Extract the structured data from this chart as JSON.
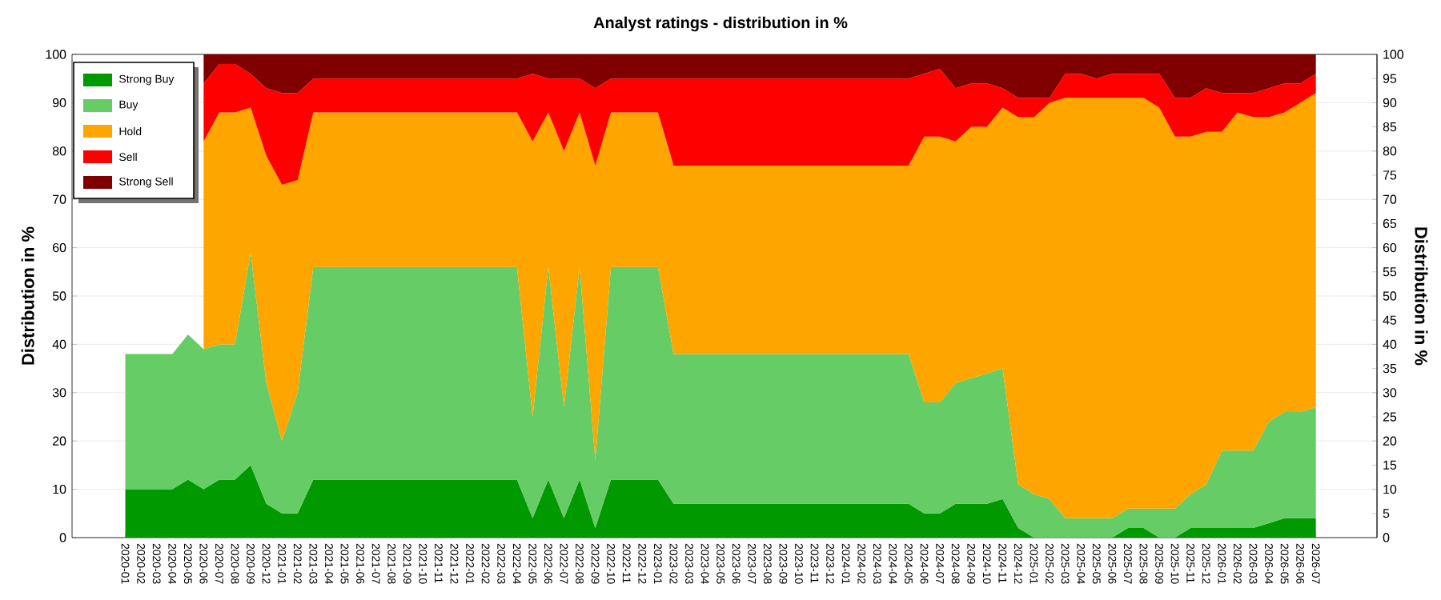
{
  "chart_data": {
    "type": "area",
    "title": "Analyst ratings - distribution in %",
    "ylabel": "Distribution in %",
    "y2label": "Distribution in %",
    "categories": [
      "2020-01",
      "2020-02",
      "2020-03",
      "2020-04",
      "2020-05",
      "2020-06",
      "2020-07",
      "2020-08",
      "2020-09",
      "2020-12",
      "2021-01",
      "2021-02",
      "2021-03",
      "2021-04",
      "2021-05",
      "2021-06",
      "2021-07",
      "2021-08",
      "2021-09",
      "2021-10",
      "2021-11",
      "2021-12",
      "2022-01",
      "2022-02",
      "2022-03",
      "2022-04",
      "2022-05",
      "2022-06",
      "2022-07",
      "2022-08",
      "2022-09",
      "2022-10",
      "2022-11",
      "2022-12",
      "2023-01",
      "2023-02",
      "2023-03",
      "2023-04",
      "2023-05",
      "2023-06",
      "2023-07",
      "2023-08",
      "2023-09",
      "2023-10",
      "2023-11",
      "2023-12",
      "2024-01",
      "2024-02",
      "2024-03",
      "2024-04",
      "2024-05",
      "2024-06",
      "2024-07",
      "2024-08",
      "2024-09",
      "2024-10",
      "2024-11",
      "2024-12",
      "2025-01",
      "2025-02",
      "2025-03",
      "2025-04",
      "2025-05",
      "2025-06",
      "2025-07",
      "2025-08",
      "2025-09",
      "2025-10",
      "2025-11",
      "2025-12",
      "2026-01",
      "2026-02",
      "2026-03",
      "2026-04",
      "2026-05",
      "2026-06",
      "2026-07"
    ],
    "stacked": true,
    "ylim": [
      0,
      100
    ],
    "yticks": [
      0,
      10,
      20,
      30,
      40,
      50,
      60,
      70,
      80,
      90,
      100
    ],
    "y2lim": [
      0,
      100
    ],
    "y2ticks": [
      0,
      5,
      10,
      15,
      20,
      25,
      30,
      35,
      40,
      45,
      50,
      55,
      60,
      65,
      70,
      75,
      80,
      85,
      90,
      95,
      100
    ],
    "grid": "y",
    "legend": "top left",
    "series": [
      {
        "name": "Strong Buy",
        "color": "#009900",
        "values": [
          10,
          10,
          10,
          10,
          12,
          10,
          12,
          12,
          15,
          7,
          5,
          5,
          12,
          12,
          12,
          12,
          12,
          12,
          12,
          12,
          12,
          12,
          12,
          12,
          12,
          12,
          4,
          12,
          4,
          12,
          2,
          12,
          12,
          12,
          12,
          7,
          7,
          7,
          7,
          7,
          7,
          7,
          7,
          7,
          7,
          7,
          7,
          7,
          7,
          7,
          7,
          5,
          5,
          7,
          7,
          7,
          8,
          2,
          0,
          0,
          0,
          0,
          0,
          0,
          2,
          2,
          0,
          0,
          2,
          2,
          2,
          2,
          2,
          3,
          4,
          4,
          4
        ]
      },
      {
        "name": "Buy",
        "color": "#66cc66",
        "values": [
          28,
          28,
          28,
          28,
          30,
          29,
          28,
          28,
          44,
          25,
          15,
          25,
          44,
          44,
          44,
          44,
          44,
          44,
          44,
          44,
          44,
          44,
          44,
          44,
          44,
          44,
          21,
          44,
          23,
          44,
          14,
          44,
          44,
          44,
          44,
          31,
          31,
          31,
          31,
          31,
          31,
          31,
          31,
          31,
          31,
          31,
          31,
          31,
          31,
          31,
          31,
          23,
          23,
          25,
          26,
          27,
          27,
          9,
          9,
          8,
          4,
          4,
          4,
          4,
          4,
          4,
          6,
          6,
          7,
          9,
          16,
          16,
          16,
          21,
          22,
          22,
          23
        ]
      },
      {
        "name": "Hold",
        "color": "#ffa500",
        "values": [
          null,
          null,
          null,
          null,
          null,
          43,
          48,
          48,
          30,
          47,
          53,
          44,
          32,
          32,
          32,
          32,
          32,
          32,
          32,
          32,
          32,
          32,
          32,
          32,
          32,
          32,
          57,
          32,
          53,
          32,
          61,
          32,
          32,
          32,
          32,
          39,
          39,
          39,
          39,
          39,
          39,
          39,
          39,
          39,
          39,
          39,
          39,
          39,
          39,
          39,
          39,
          55,
          55,
          50,
          52,
          51,
          54,
          76,
          78,
          82,
          87,
          87,
          87,
          87,
          85,
          85,
          83,
          77,
          74,
          73,
          66,
          70,
          69,
          63,
          62,
          64,
          65
        ]
      },
      {
        "name": "Sell",
        "color": "#ff0000",
        "values": [
          null,
          null,
          null,
          null,
          null,
          12,
          10,
          10,
          7,
          14,
          19,
          18,
          7,
          7,
          7,
          7,
          7,
          7,
          7,
          7,
          7,
          7,
          7,
          7,
          7,
          7,
          14,
          7,
          15,
          7,
          16,
          7,
          7,
          7,
          7,
          18,
          18,
          18,
          18,
          18,
          18,
          18,
          18,
          18,
          18,
          18,
          18,
          18,
          18,
          18,
          18,
          13,
          14,
          11,
          9,
          9,
          4,
          4,
          4,
          1,
          5,
          5,
          4,
          5,
          5,
          5,
          7,
          8,
          8,
          9,
          8,
          4,
          5,
          6,
          6,
          4,
          4
        ]
      },
      {
        "name": "Strong Sell",
        "color": "#800000",
        "values": [
          null,
          null,
          null,
          null,
          null,
          6,
          2,
          2,
          4,
          7,
          8,
          8,
          5,
          5,
          5,
          5,
          5,
          5,
          5,
          5,
          5,
          5,
          5,
          5,
          5,
          5,
          4,
          5,
          5,
          5,
          7,
          5,
          5,
          5,
          5,
          5,
          5,
          5,
          5,
          5,
          5,
          5,
          5,
          5,
          5,
          5,
          5,
          5,
          5,
          5,
          5,
          4,
          3,
          7,
          6,
          6,
          7,
          9,
          9,
          9,
          4,
          4,
          5,
          4,
          4,
          4,
          4,
          9,
          9,
          7,
          8,
          8,
          8,
          7,
          6,
          6,
          4
        ]
      }
    ]
  }
}
